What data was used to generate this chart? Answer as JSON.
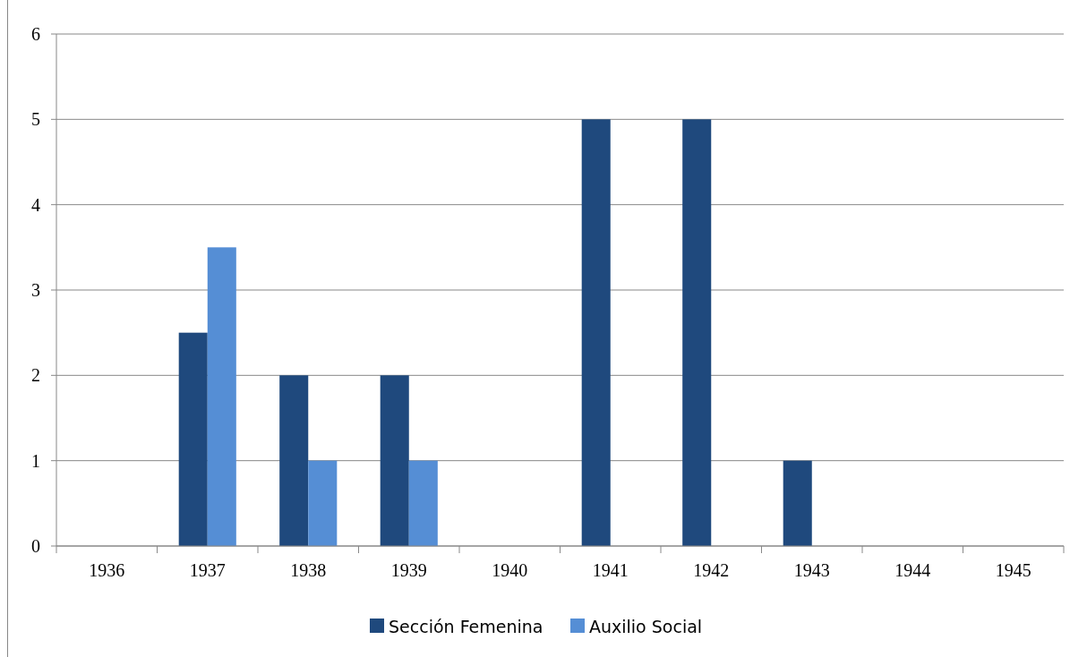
{
  "chart_data": {
    "type": "bar",
    "categories": [
      "1936",
      "1937",
      "1938",
      "1939",
      "1940",
      "1941",
      "1942",
      "1943",
      "1944",
      "1945"
    ],
    "series": [
      {
        "name": "Sección Femenina",
        "color": "#1f497d",
        "values": [
          0,
          2.5,
          2,
          2,
          0,
          5,
          5,
          1,
          0,
          0
        ]
      },
      {
        "name": "Auxilio Social",
        "color": "#558ed5",
        "values": [
          0,
          3.5,
          1,
          1,
          0,
          0,
          0,
          0,
          0,
          0
        ]
      }
    ],
    "ylim": [
      0,
      6
    ],
    "yticks": [
      0,
      1,
      2,
      3,
      4,
      5,
      6
    ],
    "grid": "y",
    "legend": "bottom"
  }
}
